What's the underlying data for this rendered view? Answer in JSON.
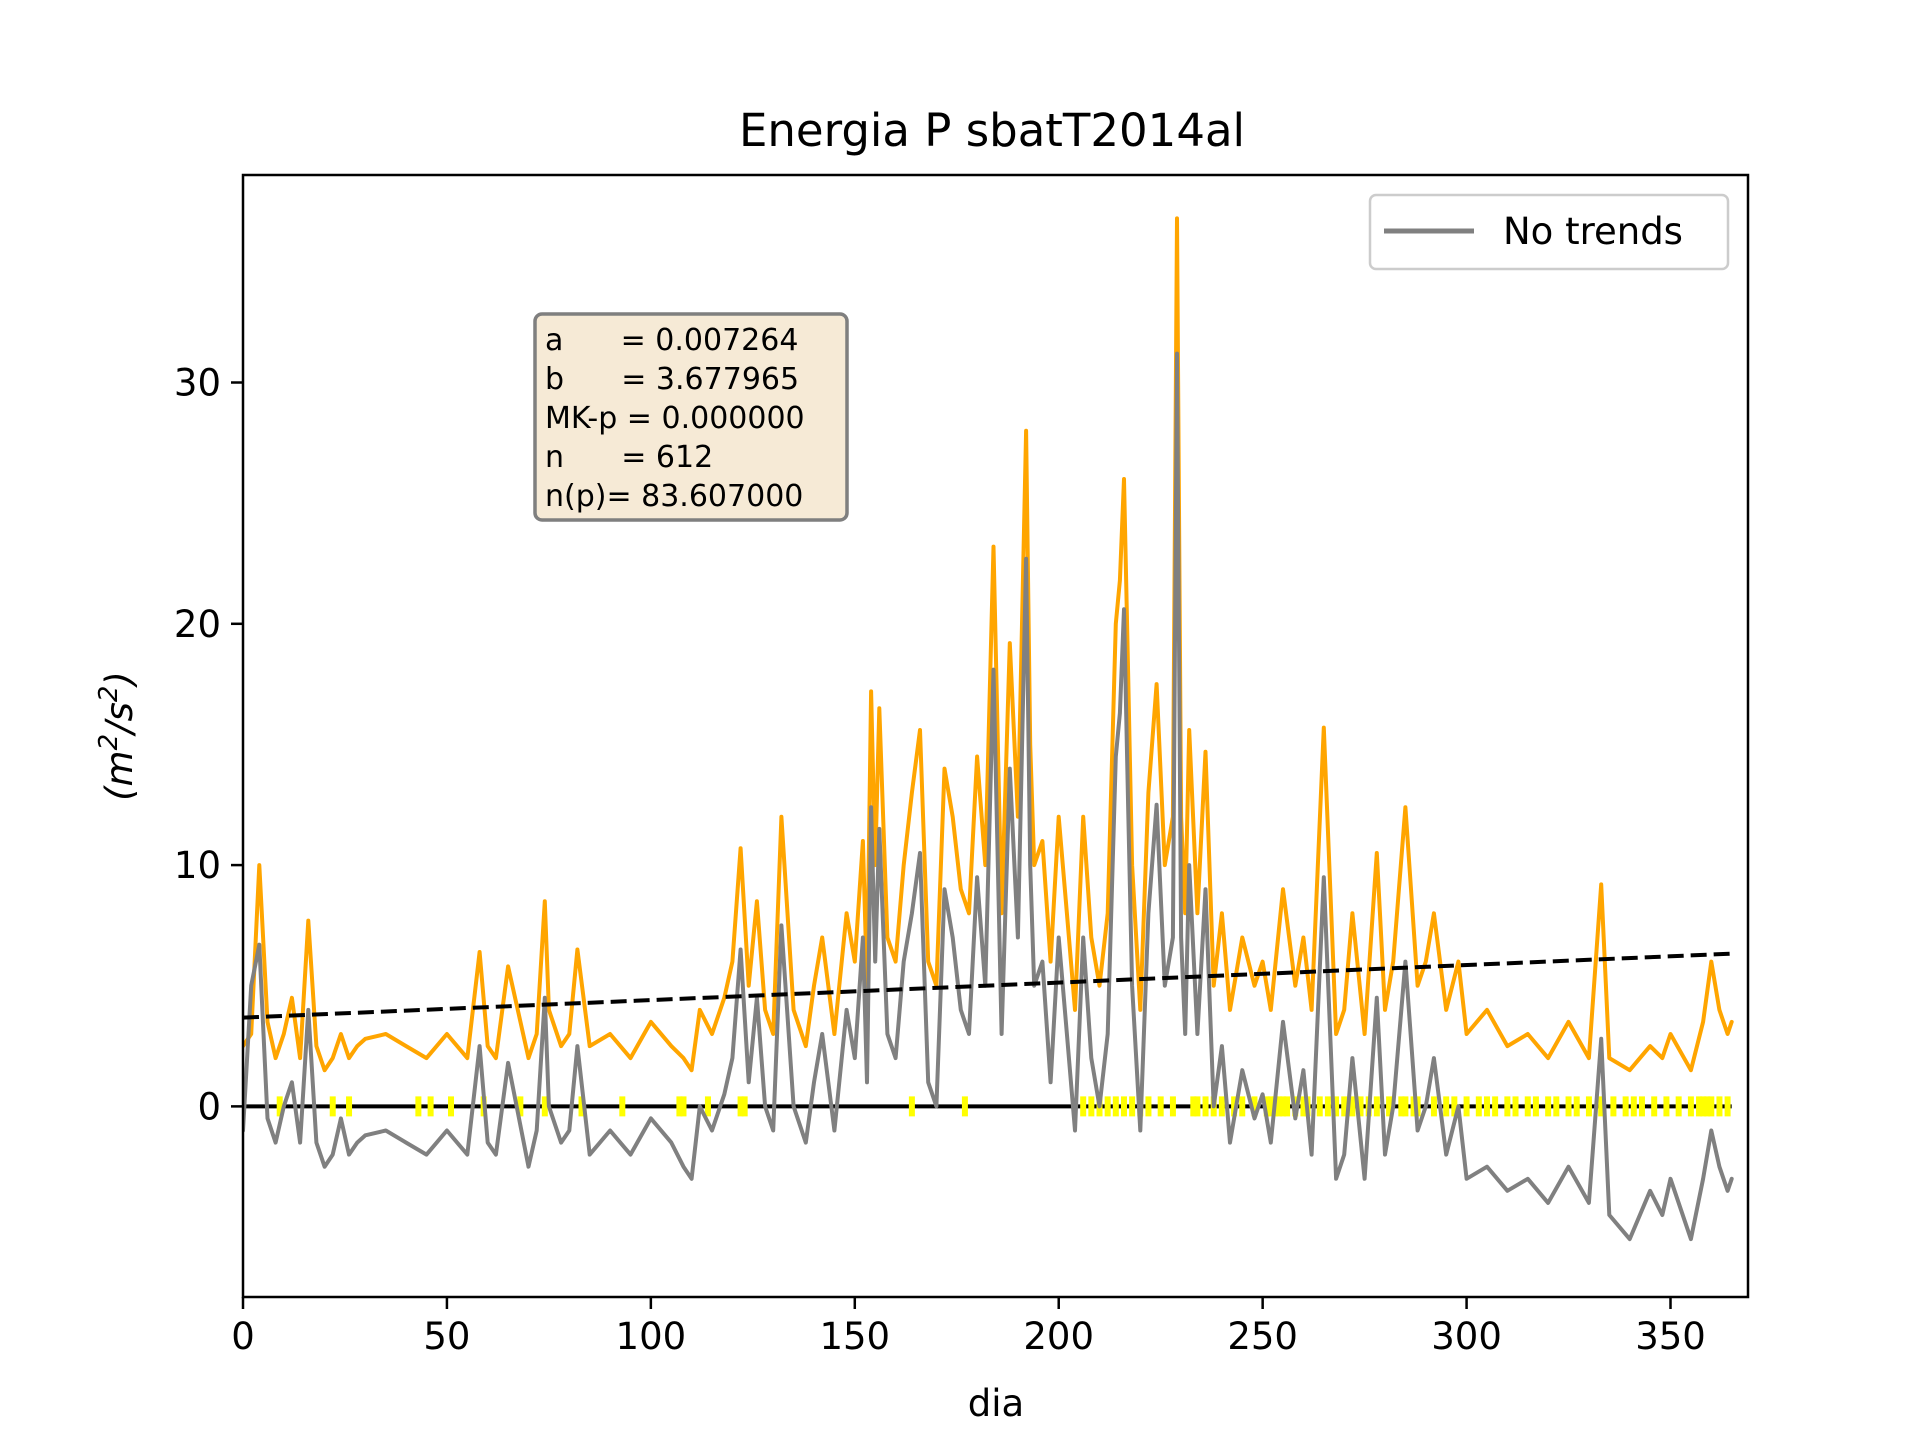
{
  "chart_data": {
    "type": "line",
    "title": "Energia P sbatT2014al",
    "xlabel": "dia",
    "ylabel_base": "(m",
    "ylabel_sup1": "2",
    "ylabel_mid": "/s",
    "ylabel_sup2": "2",
    "ylabel_end": ")",
    "xlim": [
      0,
      369
    ],
    "ylim": [
      -7.9,
      38.6
    ],
    "xticks": [
      0,
      50,
      100,
      150,
      200,
      250,
      300,
      350
    ],
    "yticks": [
      0,
      10,
      20,
      30
    ],
    "grid": false,
    "legend": {
      "placement": "top-right",
      "entries": [
        {
          "label": "No trends",
          "color": "#808080"
        }
      ]
    },
    "stats_box": {
      "lines": [
        "a      = 0.007264",
        "b      = 3.677965",
        "MK-p = 0.000000",
        "n      = 612",
        "n(p)= 83.607000"
      ]
    },
    "colors": {
      "energy": "#ffa500",
      "no_trends": "#808080",
      "trend": "#000000",
      "zero": "#000000",
      "markers": "#ffff00",
      "stats_box_fill": "#f6ead6",
      "stats_box_border": "#7f7f7f"
    },
    "trend": {
      "a": 0.007264,
      "b": 3.677965,
      "x": [
        0,
        365
      ]
    },
    "zero_line": {
      "y": 0,
      "x": [
        0,
        365
      ]
    },
    "series": [
      {
        "role": "energy",
        "x": [
          0,
          2,
          4,
          6,
          8,
          10,
          12,
          14,
          16,
          18,
          20,
          22,
          24,
          26,
          28,
          30,
          35,
          40,
          45,
          50,
          55,
          58,
          60,
          62,
          65,
          70,
          72,
          74,
          75,
          78,
          80,
          82,
          85,
          90,
          95,
          100,
          105,
          108,
          110,
          112,
          115,
          118,
          120,
          122,
          124,
          126,
          128,
          130,
          132,
          135,
          138,
          140,
          142,
          145,
          148,
          150,
          152,
          153,
          154,
          155,
          156,
          158,
          160,
          162,
          164,
          166,
          168,
          170,
          172,
          174,
          176,
          178,
          180,
          182,
          184,
          186,
          188,
          190,
          192,
          193,
          194,
          196,
          198,
          200,
          202,
          204,
          206,
          208,
          210,
          212,
          214,
          215,
          216,
          217,
          218,
          220,
          222,
          224,
          226,
          228,
          229,
          230,
          231,
          232,
          234,
          236,
          238,
          240,
          242,
          245,
          248,
          250,
          252,
          255,
          258,
          260,
          262,
          265,
          268,
          270,
          272,
          275,
          278,
          280,
          282,
          285,
          288,
          290,
          292,
          295,
          298,
          300,
          305,
          310,
          315,
          320,
          325,
          330,
          333,
          335,
          340,
          345,
          348,
          350,
          355,
          358,
          360,
          362,
          364,
          365
        ],
        "y": [
          2.5,
          3.0,
          10.0,
          3.5,
          2.0,
          3.0,
          4.5,
          2.0,
          7.7,
          2.5,
          1.5,
          2.0,
          3.0,
          2.0,
          2.5,
          2.8,
          3.0,
          2.5,
          2.0,
          3.0,
          2.0,
          6.4,
          2.5,
          2.0,
          5.8,
          2.0,
          3.0,
          8.5,
          4.0,
          2.5,
          3.0,
          6.5,
          2.5,
          3.0,
          2.0,
          3.5,
          2.5,
          2.0,
          1.5,
          4.0,
          3.0,
          4.5,
          6.0,
          10.7,
          5.0,
          8.5,
          4.0,
          3.0,
          12.0,
          4.0,
          2.5,
          5.0,
          7.0,
          3.0,
          8.0,
          6.0,
          11.0,
          5.0,
          17.2,
          10.0,
          16.5,
          7.0,
          6.0,
          10.0,
          13.0,
          15.6,
          6.0,
          5.0,
          14.0,
          12.0,
          9.0,
          8.0,
          14.5,
          10.0,
          23.2,
          8.0,
          19.2,
          12.0,
          28.0,
          15.0,
          10.0,
          11.0,
          6.0,
          12.0,
          8.0,
          4.0,
          12.0,
          7.0,
          5.0,
          8.0,
          20.0,
          21.8,
          26.0,
          18.0,
          10.0,
          4.0,
          13.0,
          17.5,
          10.0,
          12.0,
          36.8,
          12.0,
          8.0,
          15.6,
          8.0,
          14.7,
          5.0,
          8.0,
          4.0,
          7.0,
          5.0,
          6.0,
          4.0,
          9.0,
          5.0,
          7.0,
          4.0,
          15.7,
          3.0,
          4.0,
          8.0,
          3.0,
          10.5,
          4.0,
          6.0,
          12.4,
          5.0,
          6.0,
          8.0,
          4.0,
          6.0,
          3.0,
          4.0,
          2.5,
          3.0,
          2.0,
          3.5,
          2.0,
          9.2,
          2.0,
          1.5,
          2.5,
          2.0,
          3.0,
          1.5,
          3.5,
          6.0,
          4.0,
          3.0,
          3.5
        ]
      },
      {
        "role": "no_trends",
        "name": "No trends",
        "x": [
          0,
          2,
          4,
          6,
          8,
          10,
          12,
          14,
          16,
          18,
          20,
          22,
          24,
          26,
          28,
          30,
          35,
          40,
          45,
          50,
          55,
          58,
          60,
          62,
          65,
          70,
          72,
          74,
          75,
          78,
          80,
          82,
          85,
          90,
          95,
          100,
          105,
          108,
          110,
          112,
          115,
          118,
          120,
          122,
          124,
          126,
          128,
          130,
          132,
          135,
          138,
          140,
          142,
          145,
          148,
          150,
          152,
          153,
          154,
          155,
          156,
          158,
          160,
          162,
          164,
          166,
          168,
          170,
          172,
          174,
          176,
          178,
          180,
          182,
          184,
          186,
          188,
          190,
          192,
          193,
          194,
          196,
          198,
          200,
          202,
          204,
          206,
          208,
          210,
          212,
          214,
          215,
          216,
          217,
          218,
          220,
          222,
          224,
          226,
          228,
          229,
          230,
          231,
          232,
          234,
          236,
          238,
          240,
          242,
          245,
          248,
          250,
          252,
          255,
          258,
          260,
          262,
          265,
          268,
          270,
          272,
          275,
          278,
          280,
          282,
          285,
          288,
          290,
          292,
          295,
          298,
          300,
          305,
          310,
          315,
          320,
          325,
          330,
          333,
          335,
          340,
          345,
          348,
          350,
          355,
          358,
          360,
          362,
          364,
          365
        ],
        "y": [
          -1.0,
          5.0,
          6.7,
          -0.5,
          -1.5,
          0.0,
          1.0,
          -1.5,
          4.0,
          -1.5,
          -2.5,
          -2.0,
          -0.5,
          -2.0,
          -1.5,
          -1.2,
          -1.0,
          -1.5,
          -2.0,
          -1.0,
          -2.0,
          2.5,
          -1.5,
          -2.0,
          1.8,
          -2.5,
          -1.0,
          4.5,
          0.0,
          -1.5,
          -1.0,
          2.5,
          -2.0,
          -1.0,
          -2.0,
          -0.5,
          -1.5,
          -2.5,
          -3.0,
          0.0,
          -1.0,
          0.5,
          2.0,
          6.5,
          1.0,
          4.5,
          0.0,
          -1.0,
          7.5,
          0.0,
          -1.5,
          1.0,
          3.0,
          -1.0,
          4.0,
          2.0,
          7.0,
          1.0,
          12.4,
          6.0,
          11.5,
          3.0,
          2.0,
          6.0,
          8.0,
          10.5,
          1.0,
          0.0,
          9.0,
          7.0,
          4.0,
          3.0,
          9.5,
          5.0,
          18.1,
          3.0,
          14.0,
          7.0,
          22.7,
          10.0,
          5.0,
          6.0,
          1.0,
          7.0,
          3.0,
          -1.0,
          7.0,
          2.0,
          0.0,
          3.0,
          14.5,
          16.3,
          20.6,
          12.5,
          5.0,
          -1.0,
          8.0,
          12.5,
          5.0,
          7.0,
          31.2,
          7.0,
          3.0,
          10.0,
          3.0,
          9.0,
          0.0,
          2.5,
          -1.5,
          1.5,
          -0.5,
          0.5,
          -1.5,
          3.5,
          -0.5,
          1.5,
          -2.0,
          9.5,
          -3.0,
          -2.0,
          2.0,
          -3.0,
          4.5,
          -2.0,
          0.0,
          6.0,
          -1.0,
          0.0,
          2.0,
          -2.0,
          0.0,
          -3.0,
          -2.5,
          -3.5,
          -3.0,
          -4.0,
          -2.5,
          -4.0,
          2.8,
          -4.5,
          -5.5,
          -3.5,
          -4.5,
          -3.0,
          -5.5,
          -3.0,
          -1.0,
          -2.5,
          -3.5,
          -3.0
        ]
      }
    ],
    "markers": {
      "y": 0,
      "x": [
        9,
        22,
        26,
        43,
        46,
        51,
        59,
        68,
        74,
        83,
        93,
        107,
        108,
        114,
        122,
        123,
        164,
        177,
        206,
        208,
        210,
        212,
        214,
        216,
        218,
        220,
        222,
        225,
        228,
        233,
        234,
        236,
        238,
        240,
        243,
        245,
        248,
        251,
        252,
        253,
        254,
        255,
        256,
        258,
        260,
        261,
        264,
        266,
        268,
        270,
        272,
        274,
        276,
        278,
        281,
        284,
        285,
        287,
        288,
        292,
        295,
        297,
        300,
        303,
        305,
        307,
        310,
        312,
        315,
        317,
        320,
        322,
        325,
        327,
        330,
        333,
        336,
        339,
        341,
        343,
        346,
        349,
        352,
        355,
        357,
        358,
        359,
        360,
        362,
        364
      ]
    }
  }
}
